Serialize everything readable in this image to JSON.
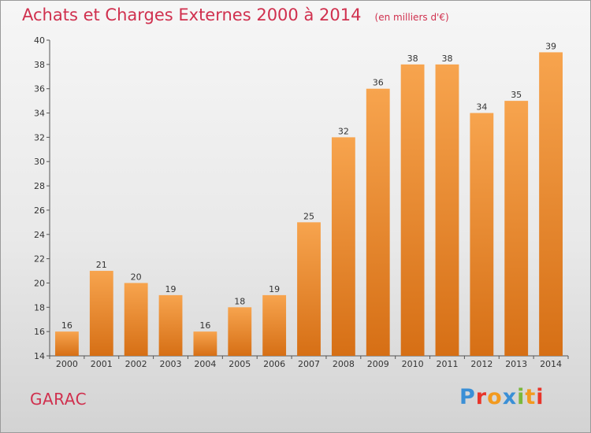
{
  "header": {
    "title": "Achats et Charges Externes 2000 à 2014",
    "subtitle": "(en milliers d'€)"
  },
  "footer": {
    "town": "GARAC",
    "brand": "Proxiti"
  },
  "colors": {
    "title": "#d0304e",
    "bar_top": "#f7a44e",
    "bar_bottom": "#d66f15",
    "brand_letters": [
      "#3a8fd6",
      "#e8352a",
      "#f29a1f",
      "#3a8fd6",
      "#7ab83b",
      "#f29a1f",
      "#e8352a"
    ]
  },
  "chart_data": {
    "type": "bar",
    "title": "Achats et Charges Externes 2000 à 2014",
    "subtitle": "(en milliers d'€)",
    "categories": [
      "2000",
      "2001",
      "2002",
      "2003",
      "2004",
      "2005",
      "2006",
      "2007",
      "2008",
      "2009",
      "2010",
      "2011",
      "2012",
      "2013",
      "2014"
    ],
    "values": [
      16,
      21,
      20,
      19,
      16,
      18,
      19,
      25,
      32,
      36,
      38,
      38,
      34,
      35,
      39
    ],
    "ylim": [
      14,
      40
    ],
    "yticks": [
      14,
      16,
      18,
      20,
      22,
      24,
      26,
      28,
      30,
      32,
      34,
      36,
      38,
      40
    ],
    "grid": false,
    "legend": "none"
  }
}
